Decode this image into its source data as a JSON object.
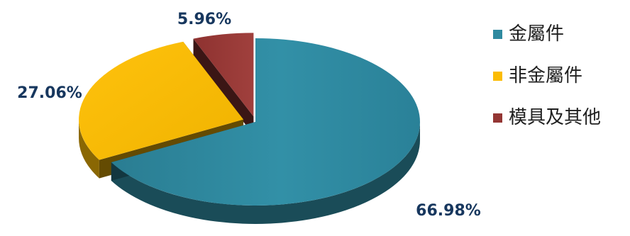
{
  "chart_data": {
    "type": "pie",
    "style": "3d-exploded",
    "title": "",
    "series": [
      {
        "values": [
          66.98,
          27.06,
          5.96
        ],
        "labels": [
          "66.98%",
          "27.06%",
          "5.96%"
        ]
      }
    ],
    "categories": [
      "金屬件",
      "非金屬件",
      "模具及其他"
    ],
    "colors": [
      "#2f8aa0",
      "#fbbc05",
      "#943634"
    ],
    "legend": {
      "position": "right"
    },
    "data_labels": "percent"
  }
}
